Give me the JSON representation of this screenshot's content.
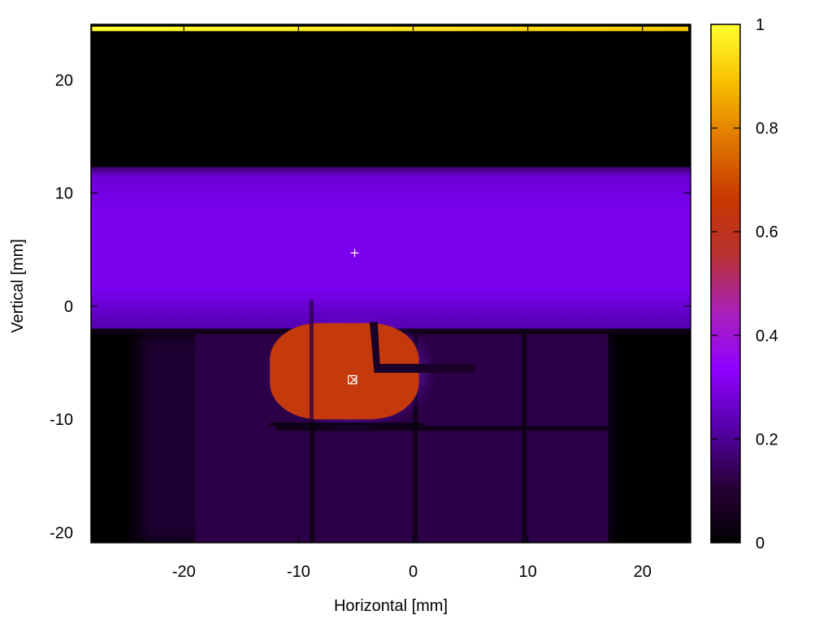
{
  "chart_data": {
    "type": "heatmap",
    "title": "",
    "xlabel": "Horizontal [mm]",
    "ylabel": "Vertical [mm]",
    "xlim": [
      -28.1,
      24.2
    ],
    "ylim": [
      -20.9,
      24.9
    ],
    "xticks": [
      -20,
      -10,
      0,
      10,
      20
    ],
    "yticks": [
      -20,
      -10,
      0,
      10,
      20
    ],
    "xtick_labels": [
      "-20",
      "-10",
      "0",
      "10",
      "20"
    ],
    "ytick_labels": [
      "-20",
      "-10",
      "0",
      "10",
      "20"
    ],
    "colorbar": {
      "range": [
        0,
        1
      ],
      "ticks": [
        0,
        0.2,
        0.4,
        0.6,
        0.8,
        1
      ],
      "tick_labels": [
        "0",
        "0.2",
        "0.4",
        "0.6",
        "0.8",
        "1"
      ],
      "colormap": [
        "#000000",
        "#2a003a",
        "#5500aa",
        "#8f00ff",
        "#aa22bb",
        "#b83030",
        "#c83800",
        "#e07800",
        "#f8c000",
        "#ffff30"
      ]
    },
    "regions": [
      {
        "name": "bright top strip",
        "x": [
          -28,
          24
        ],
        "y": [
          24.3,
          24.7
        ],
        "value": 0.95
      },
      {
        "name": "dark upper region",
        "x": [
          -28,
          24
        ],
        "y": [
          12.3,
          24.3
        ],
        "value": 0.0
      },
      {
        "name": "violet band",
        "x": [
          -28,
          24
        ],
        "y": [
          -2.0,
          12.3
        ],
        "value": 0.27
      },
      {
        "name": "dim lower region",
        "x": [
          -24,
          17
        ],
        "y": [
          -20.9,
          -2.5
        ],
        "value": 0.06
      },
      {
        "name": "hot spot",
        "x": [
          -12.5,
          0.5
        ],
        "y": [
          -10.0,
          -1.5
        ],
        "value": 0.5
      }
    ],
    "markers": [
      {
        "name": "plus marker",
        "symbol": "+",
        "x": -5.1,
        "y": 4.7
      },
      {
        "name": "box marker",
        "symbol": "square-x",
        "x": -5.3,
        "y": -6.5
      }
    ],
    "grid": false
  }
}
